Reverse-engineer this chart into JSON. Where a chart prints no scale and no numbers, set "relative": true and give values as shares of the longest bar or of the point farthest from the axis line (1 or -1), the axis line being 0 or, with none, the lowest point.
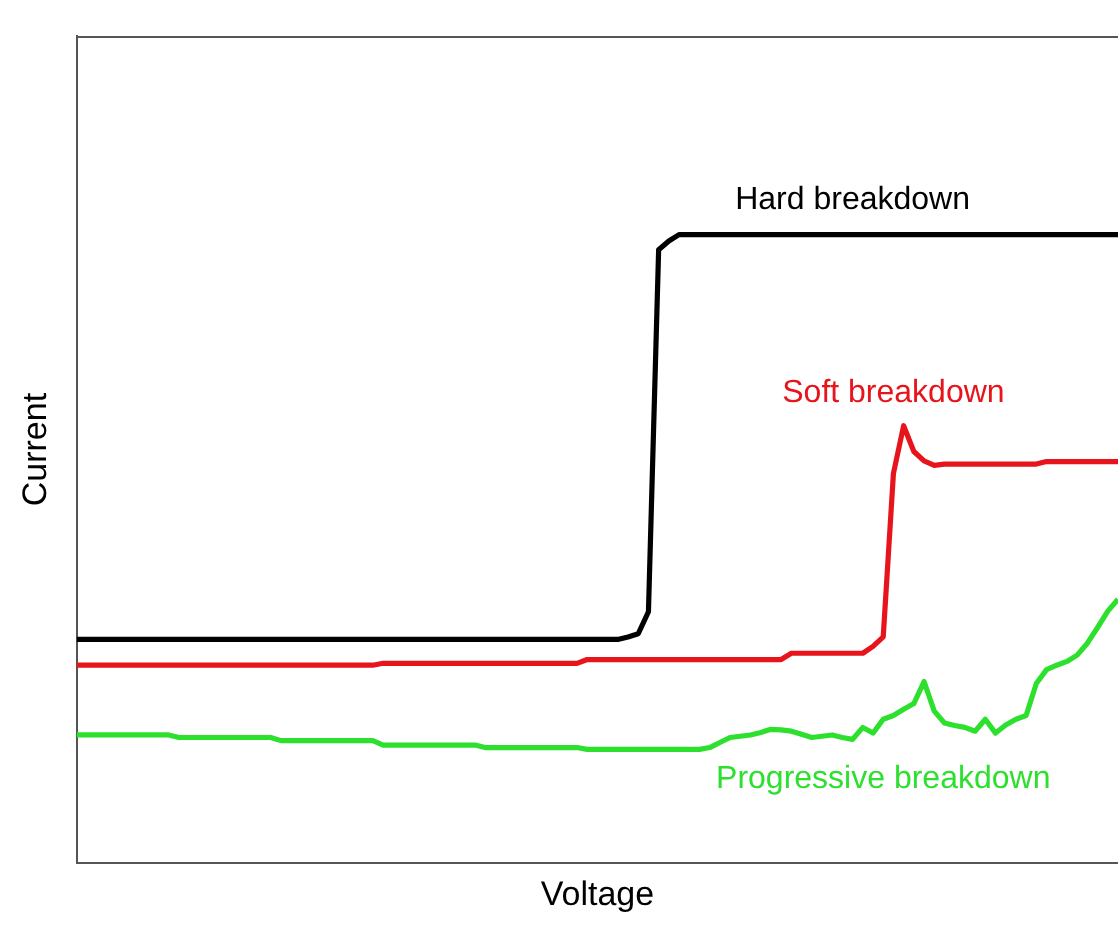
{
  "chart_data": {
    "type": "line",
    "relative": true,
    "xlabel": "Voltage",
    "ylabel": "Current",
    "marker": "none",
    "line_style": "solid",
    "grid": false,
    "legend": false,
    "categories": [
      null,
      null,
      null,
      null,
      null,
      null,
      null,
      null,
      null,
      null,
      null,
      null,
      null,
      null,
      null,
      null,
      null,
      null,
      null,
      null,
      null,
      null,
      null,
      null,
      null,
      null,
      null,
      null,
      null,
      null,
      null,
      null,
      null,
      null,
      null,
      null,
      null,
      null,
      null,
      null,
      null,
      null,
      null,
      null,
      null,
      null,
      null,
      null,
      null,
      null,
      null,
      null,
      null,
      null,
      null,
      null,
      null,
      null,
      null,
      null,
      null,
      null,
      null,
      null,
      null,
      null,
      null,
      null,
      null,
      null,
      null,
      null,
      null,
      null,
      null,
      null,
      null,
      null,
      null,
      null,
      null,
      null,
      null,
      null,
      null,
      null,
      null,
      null,
      null,
      null,
      null,
      null,
      null,
      null,
      null,
      null,
      null,
      null,
      null,
      null,
      null,
      null,
      null
    ],
    "series": [
      {
        "name": "Hard breakdown",
        "color": "#000000",
        "values": [
          0.356,
          0.356,
          0.356,
          0.356,
          0.356,
          0.356,
          0.356,
          0.356,
          0.356,
          0.356,
          0.356,
          0.356,
          0.356,
          0.356,
          0.356,
          0.356,
          0.356,
          0.356,
          0.356,
          0.356,
          0.356,
          0.356,
          0.356,
          0.356,
          0.356,
          0.356,
          0.356,
          0.356,
          0.356,
          0.356,
          0.356,
          0.356,
          0.356,
          0.356,
          0.356,
          0.356,
          0.356,
          0.356,
          0.356,
          0.356,
          0.356,
          0.356,
          0.356,
          0.356,
          0.356,
          0.356,
          0.356,
          0.356,
          0.356,
          0.356,
          0.356,
          0.356,
          0.356,
          0.356,
          0.36,
          0.365,
          0.4,
          0.976,
          0.99,
          1,
          1,
          1,
          1,
          1,
          1,
          1,
          1,
          1,
          1,
          1,
          1,
          1,
          1,
          1,
          1,
          1,
          1,
          1,
          1,
          1,
          1,
          1,
          1,
          1,
          1,
          1,
          1,
          1,
          1,
          1,
          1,
          1,
          1,
          1,
          1,
          1,
          1,
          1,
          1,
          1,
          1,
          1,
          1
        ]
      },
      {
        "name": "Soft breakdown",
        "color": "#e8141c",
        "values": [
          0.315,
          0.315,
          0.315,
          0.315,
          0.315,
          0.315,
          0.315,
          0.315,
          0.315,
          0.315,
          0.315,
          0.315,
          0.315,
          0.315,
          0.315,
          0.315,
          0.315,
          0.315,
          0.315,
          0.315,
          0.315,
          0.315,
          0.315,
          0.315,
          0.315,
          0.315,
          0.315,
          0.315,
          0.315,
          0.315,
          0.318,
          0.318,
          0.318,
          0.318,
          0.318,
          0.318,
          0.318,
          0.318,
          0.318,
          0.318,
          0.318,
          0.318,
          0.318,
          0.318,
          0.318,
          0.318,
          0.318,
          0.318,
          0.318,
          0.318,
          0.324,
          0.324,
          0.324,
          0.324,
          0.324,
          0.324,
          0.324,
          0.324,
          0.324,
          0.324,
          0.324,
          0.324,
          0.324,
          0.324,
          0.324,
          0.324,
          0.324,
          0.324,
          0.324,
          0.324,
          0.334,
          0.334,
          0.334,
          0.334,
          0.334,
          0.334,
          0.334,
          0.334,
          0.345,
          0.36,
          0.62,
          0.696,
          0.655,
          0.64,
          0.633,
          0.635,
          0.635,
          0.635,
          0.635,
          0.635,
          0.635,
          0.635,
          0.635,
          0.635,
          0.635,
          0.639,
          0.639,
          0.639,
          0.639,
          0.639,
          0.639,
          0.639,
          0.639
        ]
      },
      {
        "name": "Progressive breakdown",
        "color": "#2ee02e",
        "values": [
          0.204,
          0.204,
          0.204,
          0.204,
          0.204,
          0.204,
          0.204,
          0.204,
          0.204,
          0.204,
          0.2,
          0.2,
          0.2,
          0.2,
          0.2,
          0.2,
          0.2,
          0.2,
          0.2,
          0.2,
          0.195,
          0.195,
          0.195,
          0.195,
          0.195,
          0.195,
          0.195,
          0.195,
          0.195,
          0.195,
          0.188,
          0.188,
          0.188,
          0.188,
          0.188,
          0.188,
          0.188,
          0.188,
          0.188,
          0.188,
          0.184,
          0.184,
          0.184,
          0.184,
          0.184,
          0.184,
          0.184,
          0.184,
          0.184,
          0.184,
          0.181,
          0.181,
          0.181,
          0.181,
          0.181,
          0.181,
          0.181,
          0.181,
          0.181,
          0.181,
          0.181,
          0.181,
          0.184,
          0.192,
          0.2,
          0.202,
          0.204,
          0.208,
          0.213,
          0.212,
          0.21,
          0.205,
          0.2,
          0.202,
          0.204,
          0.2,
          0.197,
          0.216,
          0.207,
          0.229,
          0.235,
          0.245,
          0.254,
          0.289,
          0.242,
          0.223,
          0.219,
          0.216,
          0.21,
          0.229,
          0.207,
          0.22,
          0.229,
          0.235,
          0.286,
          0.308,
          0.315,
          0.321,
          0.331,
          0.35,
          0.375,
          0.401,
          0.42
        ]
      }
    ]
  }
}
